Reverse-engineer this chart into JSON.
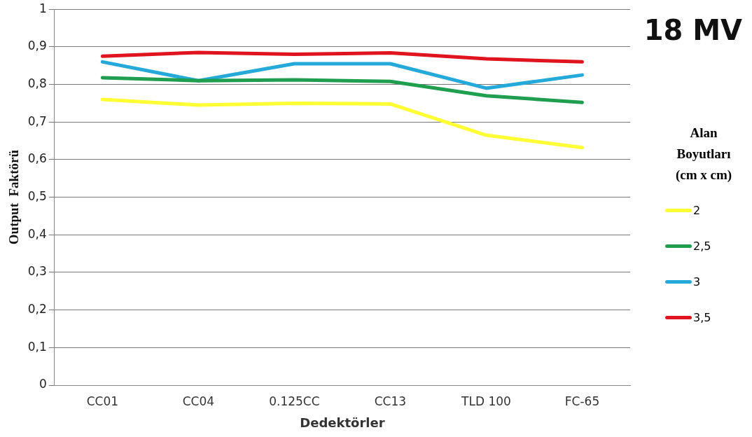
{
  "chart_data": {
    "type": "line",
    "title": "18 MV",
    "xlabel": "Dedektörler",
    "ylabel": "Output  Faktörü",
    "legend_title": "Alan Boyutları (cm x cm)",
    "legend": "right",
    "grid": "y",
    "marker": "none",
    "line_style": "solid",
    "categories": [
      "CC01",
      "CC04",
      "0.125CC",
      "CC13",
      "TLD 100",
      "FC-65"
    ],
    "ylim": [
      0,
      1
    ],
    "yticks": [
      {
        "value": 0,
        "label": "0"
      },
      {
        "value": 0.1,
        "label": "0,1"
      },
      {
        "value": 0.2,
        "label": "0,2"
      },
      {
        "value": 0.3,
        "label": "0,3"
      },
      {
        "value": 0.4,
        "label": "0,4"
      },
      {
        "value": 0.5,
        "label": "0,5"
      },
      {
        "value": 0.6,
        "label": "0,6"
      },
      {
        "value": 0.7,
        "label": "0,7"
      },
      {
        "value": 0.8,
        "label": "0,8"
      },
      {
        "value": 0.9,
        "label": "0,9"
      },
      {
        "value": 1,
        "label": "1"
      }
    ],
    "series": [
      {
        "name": "2",
        "color": "#ffff33",
        "values": [
          0.76,
          0.745,
          0.75,
          0.748,
          0.665,
          0.632
        ]
      },
      {
        "name": "2,5",
        "color": "#1e9e4e",
        "values": [
          0.818,
          0.81,
          0.812,
          0.808,
          0.77,
          0.752
        ]
      },
      {
        "name": "3",
        "color": "#25a9d9",
        "values": [
          0.86,
          0.81,
          0.855,
          0.855,
          0.79,
          0.825
        ]
      },
      {
        "name": "3,5",
        "color": "#e0141e",
        "values": [
          0.875,
          0.885,
          0.88,
          0.884,
          0.868,
          0.86
        ]
      }
    ]
  }
}
